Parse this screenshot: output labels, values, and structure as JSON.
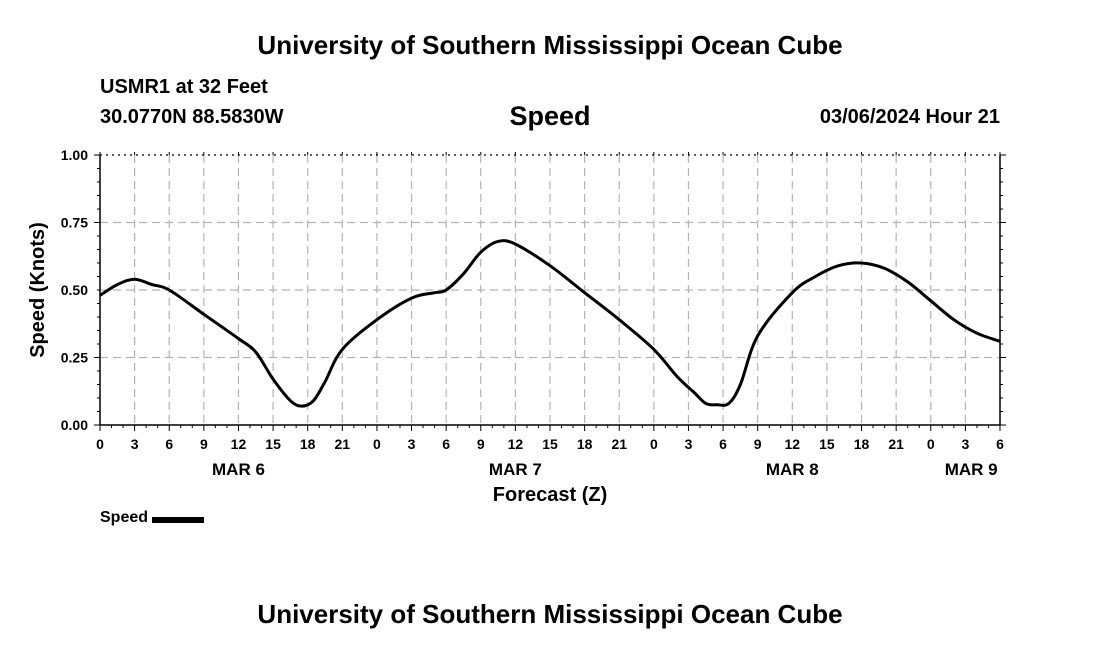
{
  "header": {
    "title": "University of Southern Mississippi Ocean Cube",
    "station": "USMR1 at 32 Feet",
    "coords": "30.0770N  88.5830W",
    "timestamp": "03/06/2024 Hour 21"
  },
  "footer": {
    "title": "University of Southern Mississippi Ocean Cube"
  },
  "legend": {
    "label": "Speed",
    "color": "#000000"
  },
  "chart_data": {
    "type": "line",
    "title": "Speed",
    "xlabel": "Forecast (Z)",
    "ylabel": "Speed (Knots)",
    "xlim": [
      0,
      78
    ],
    "ylim": [
      0,
      1.0
    ],
    "yticks": [
      "0.00",
      "0.25",
      "0.50",
      "0.75",
      "1.00"
    ],
    "xtick_hours": [
      0,
      3,
      6,
      9,
      12,
      15,
      18,
      21,
      24,
      27,
      30,
      33,
      36,
      39,
      42,
      45,
      48,
      51,
      54,
      57,
      60,
      63,
      66,
      69,
      72,
      75,
      78
    ],
    "xtick_labels": [
      "0",
      "3",
      "6",
      "9",
      "12",
      "15",
      "18",
      "21",
      "0",
      "3",
      "6",
      "9",
      "12",
      "15",
      "18",
      "21",
      "0",
      "3",
      "6",
      "9",
      "12",
      "15",
      "18",
      "21",
      "0",
      "3",
      "6"
    ],
    "date_labels": [
      {
        "label": "MAR 6",
        "hour": 12
      },
      {
        "label": "MAR 7",
        "hour": 36
      },
      {
        "label": "MAR 8",
        "hour": 60
      },
      {
        "label": "MAR 9",
        "hour": 75.5
      }
    ],
    "grid": true,
    "series": [
      {
        "name": "Speed",
        "color": "#000000",
        "x": [
          0,
          1.5,
          3,
          4.5,
          6,
          9,
          12,
          13.5,
          15,
          16.5,
          17.5,
          18.5,
          19.5,
          21,
          24,
          27,
          29,
          30,
          31.5,
          33,
          34.5,
          36,
          39,
          42,
          45,
          48,
          50,
          51.5,
          52.5,
          53.5,
          54.5,
          55.5,
          57,
          60,
          62,
          64,
          66,
          68,
          70,
          72,
          74,
          76,
          78
        ],
        "values": [
          0.48,
          0.52,
          0.54,
          0.52,
          0.5,
          0.41,
          0.32,
          0.27,
          0.17,
          0.09,
          0.07,
          0.09,
          0.16,
          0.28,
          0.39,
          0.47,
          0.49,
          0.5,
          0.56,
          0.64,
          0.68,
          0.67,
          0.59,
          0.49,
          0.39,
          0.28,
          0.18,
          0.12,
          0.08,
          0.075,
          0.08,
          0.15,
          0.33,
          0.49,
          0.55,
          0.59,
          0.6,
          0.58,
          0.53,
          0.46,
          0.39,
          0.34,
          0.31
        ]
      }
    ]
  }
}
